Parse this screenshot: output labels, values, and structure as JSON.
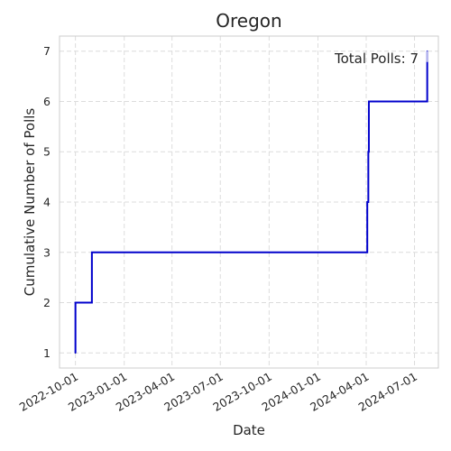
{
  "chart_data": {
    "type": "line",
    "title": "Oregon",
    "xlabel": "Date",
    "ylabel": "Cumulative Number of Polls",
    "x_ticks": [
      "2022-10-01",
      "2023-01-01",
      "2023-04-01",
      "2023-07-01",
      "2023-10-01",
      "2024-01-01",
      "2024-04-01",
      "2024-07-01"
    ],
    "y_ticks": [
      1,
      2,
      3,
      4,
      5,
      6,
      7
    ],
    "xlim": [
      "2022-09-01",
      "2024-08-15"
    ],
    "ylim": [
      0.7,
      7.3
    ],
    "line_style": "step-post",
    "grid": true,
    "series": [
      {
        "color": "#0000cc",
        "points": [
          {
            "x": "2022-10-01",
            "y": 1
          },
          {
            "x": "2022-10-01",
            "y": 2
          },
          {
            "x": "2022-11-01",
            "y": 3
          },
          {
            "x": "2024-04-03",
            "y": 4
          },
          {
            "x": "2024-04-05",
            "y": 5
          },
          {
            "x": "2024-04-06",
            "y": 6
          },
          {
            "x": "2024-07-25",
            "y": 7
          }
        ]
      }
    ],
    "annotation": "Total Polls: 7"
  }
}
